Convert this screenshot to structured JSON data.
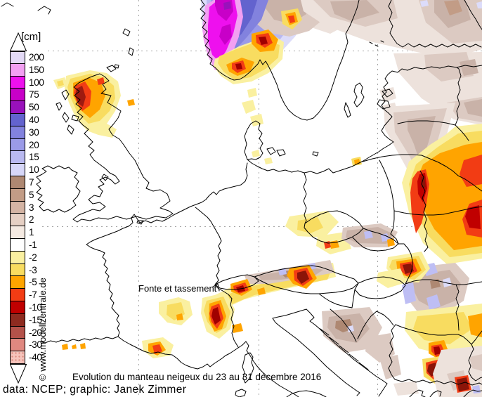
{
  "legend": {
    "unit": "[cm]",
    "entries": [
      {
        "label": "200",
        "color": "#E3DAF6"
      },
      {
        "label": "150",
        "color": "#F2A0F2"
      },
      {
        "label": "100",
        "color": "#EE10EE"
      },
      {
        "label": "75",
        "color": "#C800C8"
      },
      {
        "label": "50",
        "color": "#9911BB"
      },
      {
        "label": "40",
        "color": "#6363CE"
      },
      {
        "label": "30",
        "color": "#8282DE"
      },
      {
        "label": "20",
        "color": "#9B9BE8"
      },
      {
        "label": "15",
        "color": "#B9B9F0"
      },
      {
        "label": "10",
        "color": "#D7D7F8"
      },
      {
        "label": "7",
        "color": "#AE8872"
      },
      {
        "label": "5",
        "color": "#C29C86"
      },
      {
        "label": "3",
        "color": "#D4B4A4"
      },
      {
        "label": "2",
        "color": "#E6D0C4"
      },
      {
        "label": "1",
        "color": "#F5EAE2"
      },
      {
        "label": "-1",
        "color": "#FFFFFF"
      },
      {
        "label": "-2",
        "color": "#FAF0A0"
      },
      {
        "label": "-3",
        "color": "#F8DC60"
      },
      {
        "label": "-5",
        "color": "#FFA400"
      },
      {
        "label": "-7",
        "color": "#F23C14"
      },
      {
        "label": "-10",
        "color": "#C00000"
      },
      {
        "label": "-15",
        "color": "#8E2B20"
      },
      {
        "label": "-20",
        "color": "#B4524A"
      },
      {
        "label": "-30",
        "color": "#E08880"
      },
      {
        "label": "-40",
        "color": "#F6C4BC",
        "stipple": true
      }
    ]
  },
  "texts": {
    "annotation": "Fonte et tassement",
    "caption": "Evolution du manteau neigeux du 23 au 31 décembre 2016",
    "credit": "data: NCEP; graphic: Janek Zimmer",
    "watermark": "© www.modellzentrale.de"
  }
}
